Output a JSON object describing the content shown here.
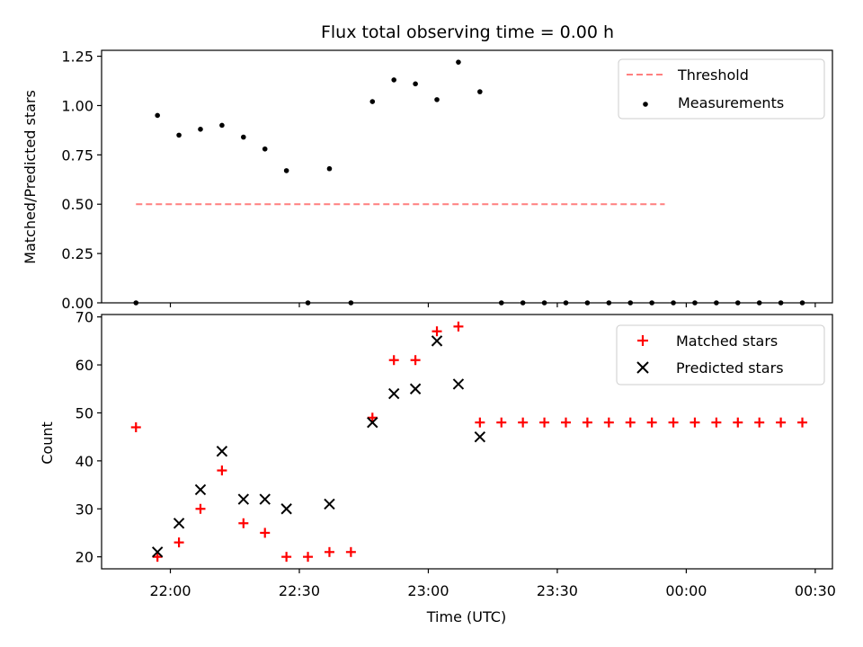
{
  "chart_data": [
    {
      "type": "scatter",
      "title": "Flux total observing time = 0.00 h",
      "xlabel": "",
      "ylabel": "Matched/Predicted stars",
      "ylim": [
        0.0,
        1.28
      ],
      "yticks": [
        "0.00",
        "0.25",
        "0.50",
        "0.75",
        "1.00",
        "1.25"
      ],
      "legend_position": "top-right",
      "grid": false,
      "threshold": {
        "name": "Threshold",
        "color": "#ff7f7f",
        "x": [
          "21:52",
          "23:55"
        ],
        "y": [
          0.5,
          0.5
        ]
      },
      "series": [
        {
          "name": "Measurements",
          "color": "#000000",
          "marker": "dot",
          "x": [
            "21:52",
            "21:57",
            "22:02",
            "22:07",
            "22:12",
            "22:17",
            "22:22",
            "22:27",
            "22:32",
            "22:37",
            "22:42",
            "22:47",
            "22:52",
            "22:57",
            "23:02",
            "23:07",
            "23:12",
            "23:17",
            "23:22",
            "23:27",
            "23:32",
            "23:37",
            "23:42",
            "23:47",
            "23:52",
            "23:57",
            "00:02",
            "00:07",
            "00:12",
            "00:17",
            "00:22",
            "00:27"
          ],
          "y": [
            0.0,
            0.95,
            0.85,
            0.88,
            0.9,
            0.84,
            0.78,
            0.67,
            0.0,
            0.68,
            0.0,
            1.02,
            1.13,
            1.11,
            1.03,
            1.22,
            1.07,
            0.0,
            0.0,
            0.0,
            0.0,
            0.0,
            0.0,
            0.0,
            0.0,
            0.0,
            0.0,
            0.0,
            0.0,
            0.0,
            0.0,
            0.0
          ]
        }
      ]
    },
    {
      "type": "scatter",
      "title": "",
      "xlabel": "Time (UTC)",
      "ylabel": "Count",
      "ylim": [
        17.5,
        70.5
      ],
      "yticks": [
        "20",
        "30",
        "40",
        "50",
        "60",
        "70"
      ],
      "xticks": [
        "22:00",
        "22:30",
        "23:00",
        "23:30",
        "00:00",
        "00:30"
      ],
      "legend_position": "top-right",
      "grid": false,
      "series": [
        {
          "name": "Matched stars",
          "color": "#ff0000",
          "marker": "plus",
          "x": [
            "21:52",
            "21:57",
            "22:02",
            "22:07",
            "22:12",
            "22:17",
            "22:22",
            "22:27",
            "22:32",
            "22:37",
            "22:42",
            "22:47",
            "22:52",
            "22:57",
            "23:02",
            "23:07",
            "23:12",
            "23:17",
            "23:22",
            "23:27",
            "23:32",
            "23:37",
            "23:42",
            "23:47",
            "23:52",
            "23:57",
            "00:02",
            "00:07",
            "00:12",
            "00:17",
            "00:22",
            "00:27"
          ],
          "y": [
            47,
            20,
            23,
            30,
            38,
            27,
            25,
            20,
            20,
            21,
            21,
            49,
            61,
            61,
            67,
            68,
            48,
            48,
            48,
            48,
            48,
            48,
            48,
            48,
            48,
            48,
            48,
            48,
            48,
            48,
            48,
            48
          ]
        },
        {
          "name": "Predicted stars",
          "color": "#000000",
          "marker": "x",
          "x": [
            "21:57",
            "22:02",
            "22:07",
            "22:12",
            "22:17",
            "22:22",
            "22:27",
            "22:37",
            "22:47",
            "22:52",
            "22:57",
            "23:02",
            "23:07",
            "23:12"
          ],
          "y": [
            21,
            27,
            34,
            42,
            32,
            32,
            30,
            31,
            48,
            54,
            55,
            65,
            56,
            45
          ]
        }
      ]
    }
  ]
}
